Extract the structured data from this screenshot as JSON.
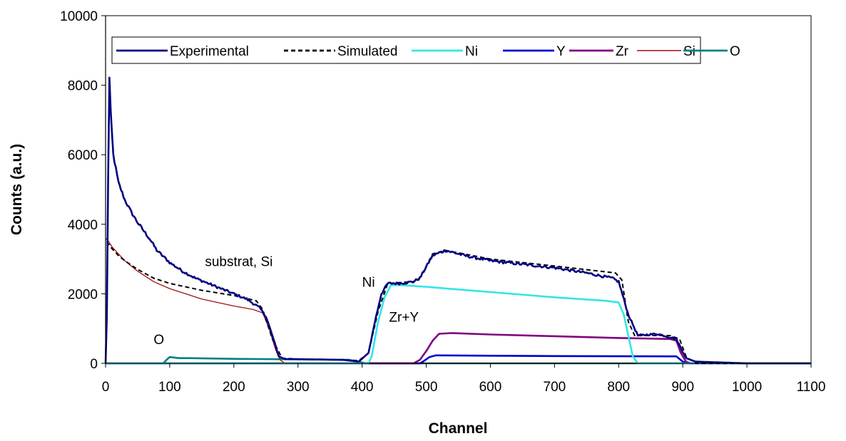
{
  "chart_data": {
    "type": "line",
    "title": "",
    "xlabel": "Channel",
    "ylabel": "Counts  (a.u.)",
    "xlim": [
      0,
      1100
    ],
    "ylim": [
      0,
      10000
    ],
    "xticks": [
      0,
      100,
      200,
      300,
      400,
      500,
      600,
      700,
      800,
      900,
      1000,
      1100
    ],
    "yticks": [
      0,
      2000,
      4000,
      6000,
      8000,
      10000
    ],
    "grid": false,
    "legend_position": "top",
    "series": [
      {
        "name": "Experimental",
        "color": "#000080",
        "style": "solid",
        "noise": 70,
        "points": [
          [
            0,
            0
          ],
          [
            3,
            2000
          ],
          [
            5,
            8700
          ],
          [
            8,
            7200
          ],
          [
            12,
            6000
          ],
          [
            20,
            5200
          ],
          [
            30,
            4700
          ],
          [
            40,
            4350
          ],
          [
            50,
            4050
          ],
          [
            60,
            3800
          ],
          [
            70,
            3550
          ],
          [
            80,
            3250
          ],
          [
            100,
            2900
          ],
          [
            120,
            2650
          ],
          [
            140,
            2450
          ],
          [
            160,
            2300
          ],
          [
            180,
            2150
          ],
          [
            200,
            2000
          ],
          [
            220,
            1850
          ],
          [
            240,
            1600
          ],
          [
            250,
            1350
          ],
          [
            260,
            800
          ],
          [
            270,
            200
          ],
          [
            280,
            120
          ],
          [
            300,
            120
          ],
          [
            340,
            110
          ],
          [
            370,
            100
          ],
          [
            395,
            50
          ],
          [
            410,
            300
          ],
          [
            420,
            1200
          ],
          [
            430,
            2000
          ],
          [
            440,
            2300
          ],
          [
            460,
            2300
          ],
          [
            480,
            2350
          ],
          [
            490,
            2450
          ],
          [
            510,
            3100
          ],
          [
            530,
            3250
          ],
          [
            560,
            3100
          ],
          [
            600,
            2950
          ],
          [
            650,
            2850
          ],
          [
            700,
            2750
          ],
          [
            750,
            2600
          ],
          [
            790,
            2450
          ],
          [
            800,
            2350
          ],
          [
            815,
            1400
          ],
          [
            830,
            800
          ],
          [
            860,
            850
          ],
          [
            880,
            750
          ],
          [
            890,
            700
          ],
          [
            905,
            150
          ],
          [
            920,
            50
          ],
          [
            1000,
            0
          ],
          [
            1100,
            0
          ]
        ]
      },
      {
        "name": "Simulated",
        "color": "#000000",
        "style": "dashed",
        "noise": 0,
        "points": [
          [
            2,
            3500
          ],
          [
            10,
            3300
          ],
          [
            20,
            3100
          ],
          [
            30,
            2950
          ],
          [
            50,
            2700
          ],
          [
            75,
            2450
          ],
          [
            100,
            2300
          ],
          [
            150,
            2100
          ],
          [
            200,
            1950
          ],
          [
            235,
            1800
          ],
          [
            245,
            1550
          ],
          [
            260,
            700
          ],
          [
            275,
            150
          ],
          [
            300,
            120
          ],
          [
            370,
            100
          ],
          [
            395,
            80
          ],
          [
            410,
            300
          ],
          [
            425,
            1500
          ],
          [
            440,
            2300
          ],
          [
            480,
            2350
          ],
          [
            490,
            2450
          ],
          [
            510,
            3150
          ],
          [
            530,
            3250
          ],
          [
            600,
            3000
          ],
          [
            700,
            2800
          ],
          [
            795,
            2600
          ],
          [
            805,
            2400
          ],
          [
            815,
            1200
          ],
          [
            825,
            800
          ],
          [
            880,
            800
          ],
          [
            895,
            700
          ],
          [
            905,
            200
          ],
          [
            920,
            0
          ],
          [
            1100,
            0
          ]
        ]
      },
      {
        "name": "Ni",
        "color": "#33E5E5",
        "style": "solid",
        "noise": 0,
        "points": [
          [
            0,
            0
          ],
          [
            410,
            0
          ],
          [
            415,
            200
          ],
          [
            425,
            1200
          ],
          [
            435,
            1900
          ],
          [
            445,
            2250
          ],
          [
            460,
            2250
          ],
          [
            500,
            2200
          ],
          [
            600,
            2050
          ],
          [
            700,
            1900
          ],
          [
            780,
            1800
          ],
          [
            800,
            1750
          ],
          [
            808,
            1400
          ],
          [
            815,
            800
          ],
          [
            822,
            200
          ],
          [
            830,
            0
          ],
          [
            1100,
            0
          ]
        ]
      },
      {
        "name": "Y",
        "color": "#0000CC",
        "style": "solid",
        "noise": 0,
        "points": [
          [
            0,
            0
          ],
          [
            490,
            0
          ],
          [
            495,
            50
          ],
          [
            505,
            180
          ],
          [
            515,
            230
          ],
          [
            600,
            220
          ],
          [
            700,
            210
          ],
          [
            880,
            200
          ],
          [
            890,
            200
          ],
          [
            900,
            50
          ],
          [
            910,
            0
          ],
          [
            1100,
            0
          ]
        ]
      },
      {
        "name": "Zr",
        "color": "#800080",
        "style": "solid",
        "noise": 0,
        "points": [
          [
            0,
            0
          ],
          [
            480,
            0
          ],
          [
            490,
            100
          ],
          [
            500,
            350
          ],
          [
            510,
            650
          ],
          [
            520,
            850
          ],
          [
            540,
            870
          ],
          [
            600,
            830
          ],
          [
            700,
            780
          ],
          [
            800,
            730
          ],
          [
            880,
            700
          ],
          [
            890,
            650
          ],
          [
            897,
            300
          ],
          [
            905,
            50
          ],
          [
            912,
            0
          ],
          [
            1100,
            0
          ]
        ]
      },
      {
        "name": "Si",
        "color": "#A01010",
        "style": "solid",
        "noise": 0,
        "points": [
          [
            0,
            3600
          ],
          [
            5,
            3500
          ],
          [
            10,
            3350
          ],
          [
            20,
            3150
          ],
          [
            30,
            2950
          ],
          [
            50,
            2650
          ],
          [
            75,
            2350
          ],
          [
            100,
            2150
          ],
          [
            150,
            1850
          ],
          [
            200,
            1650
          ],
          [
            230,
            1550
          ],
          [
            245,
            1450
          ],
          [
            255,
            1000
          ],
          [
            265,
            400
          ],
          [
            272,
            100
          ],
          [
            280,
            0
          ],
          [
            1100,
            0
          ]
        ]
      },
      {
        "name": "O",
        "color": "#008080",
        "style": "solid",
        "noise": 0,
        "points": [
          [
            0,
            0
          ],
          [
            90,
            0
          ],
          [
            95,
            100
          ],
          [
            100,
            180
          ],
          [
            115,
            150
          ],
          [
            130,
            150
          ],
          [
            200,
            130
          ],
          [
            300,
            115
          ],
          [
            380,
            100
          ],
          [
            395,
            50
          ],
          [
            405,
            0
          ],
          [
            1100,
            0
          ]
        ]
      }
    ],
    "annotations": [
      {
        "text": "substrat, Si",
        "x": 155,
        "y": 2800
      },
      {
        "text": "Ni",
        "x": 400,
        "y": 2200
      },
      {
        "text": "Zr+Y",
        "x": 442,
        "y": 1200
      },
      {
        "text": "O",
        "x": 75,
        "y": 550
      }
    ]
  }
}
